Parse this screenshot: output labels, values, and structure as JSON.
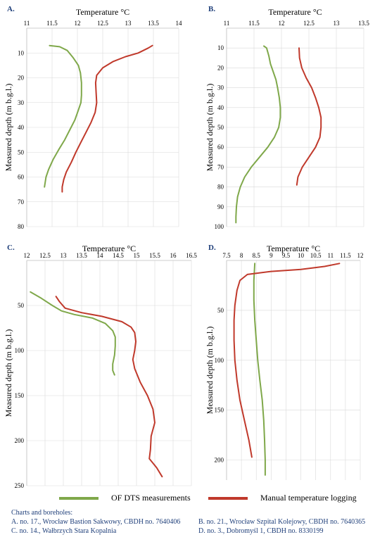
{
  "chart_data": [
    {
      "type": "line",
      "panel": "A.",
      "title": "Temperature °C",
      "xlabel": "Temperature °C",
      "ylabel": "Measured depth (m b.g.l.)",
      "xlim": [
        11,
        14
      ],
      "ylim": [
        0,
        80
      ],
      "xticks": [
        "11",
        "11.5",
        "12",
        "12.5",
        "13",
        "13.5",
        "14"
      ],
      "yticks": [
        "10",
        "20",
        "30",
        "40",
        "50",
        "60",
        "70",
        "80"
      ],
      "series": [
        {
          "name": "OF DTS measurements",
          "color": "#7fa84a",
          "points": [
            [
              11.45,
              7
            ],
            [
              11.65,
              7.5
            ],
            [
              11.8,
              9
            ],
            [
              11.92,
              12
            ],
            [
              12.02,
              15
            ],
            [
              12.06,
              18
            ],
            [
              12.08,
              22
            ],
            [
              12.08,
              27
            ],
            [
              12.07,
              30
            ],
            [
              12.02,
              33
            ],
            [
              11.95,
              37
            ],
            [
              11.85,
              41
            ],
            [
              11.75,
              45
            ],
            [
              11.63,
              49
            ],
            [
              11.52,
              53
            ],
            [
              11.43,
              57
            ],
            [
              11.38,
              60
            ],
            [
              11.35,
              64
            ]
          ]
        },
        {
          "name": "Manual temperature logging",
          "color": "#c0392b",
          "points": [
            [
              13.48,
              7
            ],
            [
              13.4,
              8
            ],
            [
              13.2,
              10
            ],
            [
              12.95,
              11.5
            ],
            [
              12.7,
              13.5
            ],
            [
              12.5,
              16
            ],
            [
              12.38,
              19
            ],
            [
              12.36,
              22
            ],
            [
              12.37,
              26
            ],
            [
              12.38,
              30
            ],
            [
              12.35,
              34
            ],
            [
              12.27,
              38
            ],
            [
              12.17,
              42
            ],
            [
              12.07,
              46
            ],
            [
              11.97,
              50
            ],
            [
              11.88,
              54
            ],
            [
              11.78,
              58
            ],
            [
              11.73,
              61
            ],
            [
              11.7,
              64
            ],
            [
              11.7,
              66
            ]
          ]
        }
      ]
    },
    {
      "type": "line",
      "panel": "B.",
      "title": "Temperature °C",
      "xlabel": "Temperature °C",
      "ylabel": "Measured depth (m b.g.l.)",
      "xlim": [
        11,
        13.5
      ],
      "ylim": [
        0,
        100
      ],
      "xticks": [
        "11",
        "11.5",
        "12",
        "12.5",
        "13",
        "13.5"
      ],
      "yticks": [
        "10",
        "20",
        "30",
        "40",
        "50",
        "60",
        "70",
        "80",
        "90",
        "100"
      ],
      "series": [
        {
          "name": "OF DTS measurements",
          "color": "#7fa84a",
          "points": [
            [
              11.68,
              9
            ],
            [
              11.73,
              10
            ],
            [
              11.77,
              14
            ],
            [
              11.8,
              18
            ],
            [
              11.85,
              22
            ],
            [
              11.9,
              26
            ],
            [
              11.93,
              30
            ],
            [
              11.96,
              35
            ],
            [
              11.98,
              40
            ],
            [
              11.98,
              45
            ],
            [
              11.95,
              50
            ],
            [
              11.87,
              55
            ],
            [
              11.75,
              60
            ],
            [
              11.6,
              65
            ],
            [
              11.45,
              70
            ],
            [
              11.33,
              75
            ],
            [
              11.25,
              80
            ],
            [
              11.2,
              85
            ],
            [
              11.18,
              90
            ],
            [
              11.17,
              95
            ],
            [
              11.17,
              98
            ]
          ]
        },
        {
          "name": "Manual temperature logging",
          "color": "#c0392b",
          "points": [
            [
              12.32,
              10
            ],
            [
              12.33,
              15
            ],
            [
              12.37,
              20
            ],
            [
              12.45,
              25
            ],
            [
              12.55,
              30
            ],
            [
              12.62,
              35
            ],
            [
              12.68,
              40
            ],
            [
              12.72,
              45
            ],
            [
              12.72,
              50
            ],
            [
              12.7,
              55
            ],
            [
              12.62,
              60
            ],
            [
              12.5,
              65
            ],
            [
              12.38,
              70
            ],
            [
              12.3,
              75
            ],
            [
              12.28,
              79
            ]
          ]
        }
      ]
    },
    {
      "type": "line",
      "panel": "C.",
      "title": "Temperature °C",
      "xlabel": "Temperature °C",
      "ylabel": "Measured depth (m b.g.l.)",
      "xlim": [
        12,
        16.5
      ],
      "ylim": [
        0,
        250
      ],
      "xticks": [
        "12",
        "12.5",
        "13",
        "13.5",
        "14",
        "14.5",
        "15",
        "15.5",
        "16",
        "16.5"
      ],
      "yticks": [
        "50",
        "100",
        "150",
        "200",
        "250"
      ],
      "series": [
        {
          "name": "OF DTS measurements",
          "color": "#7fa84a",
          "points": [
            [
              12.1,
              35
            ],
            [
              12.4,
              42
            ],
            [
              12.7,
              50
            ],
            [
              12.95,
              56
            ],
            [
              13.3,
              60
            ],
            [
              13.8,
              64
            ],
            [
              14.15,
              70
            ],
            [
              14.35,
              78
            ],
            [
              14.42,
              85
            ],
            [
              14.42,
              95
            ],
            [
              14.4,
              105
            ],
            [
              14.35,
              115
            ],
            [
              14.35,
              122
            ],
            [
              14.4,
              127
            ]
          ]
        },
        {
          "name": "Manual temperature logging",
          "color": "#c0392b",
          "points": [
            [
              12.8,
              40
            ],
            [
              12.9,
              46
            ],
            [
              13.05,
              53
            ],
            [
              13.5,
              58
            ],
            [
              14.05,
              62
            ],
            [
              14.6,
              68
            ],
            [
              14.85,
              74
            ],
            [
              14.95,
              80
            ],
            [
              14.98,
              90
            ],
            [
              14.95,
              100
            ],
            [
              14.9,
              110
            ],
            [
              14.95,
              120
            ],
            [
              15.1,
              135
            ],
            [
              15.3,
              150
            ],
            [
              15.45,
              165
            ],
            [
              15.5,
              180
            ],
            [
              15.4,
              195
            ],
            [
              15.38,
              210
            ],
            [
              15.35,
              220
            ],
            [
              15.55,
              230
            ],
            [
              15.7,
              240
            ]
          ]
        }
      ]
    },
    {
      "type": "line",
      "panel": "D.",
      "title": "Temperature °C",
      "xlabel": "Temperature °C",
      "ylabel": "Measured depth (m b.g.l.)",
      "xlim": [
        7.5,
        12
      ],
      "ylim": [
        0,
        220
      ],
      "xticks": [
        "7.5",
        "8",
        "8.5",
        "9",
        "9.5",
        "10",
        "10.5",
        "11",
        "11.5",
        "12"
      ],
      "yticks": [
        "50",
        "100",
        "150",
        "200"
      ],
      "series": [
        {
          "name": "OF DTS measurements",
          "color": "#7fa84a",
          "points": [
            [
              8.45,
              3
            ],
            [
              8.42,
              20
            ],
            [
              8.42,
              40
            ],
            [
              8.45,
              60
            ],
            [
              8.5,
              80
            ],
            [
              8.55,
              100
            ],
            [
              8.62,
              120
            ],
            [
              8.7,
              140
            ],
            [
              8.75,
              160
            ],
            [
              8.78,
              180
            ],
            [
              8.8,
              200
            ],
            [
              8.8,
              215
            ]
          ]
        },
        {
          "name": "Manual temperature logging",
          "color": "#c0392b",
          "points": [
            [
              11.3,
              3
            ],
            [
              10.8,
              6
            ],
            [
              10.0,
              9
            ],
            [
              9.0,
              11
            ],
            [
              8.2,
              14
            ],
            [
              7.95,
              20
            ],
            [
              7.85,
              30
            ],
            [
              7.78,
              45
            ],
            [
              7.75,
              60
            ],
            [
              7.75,
              80
            ],
            [
              7.78,
              100
            ],
            [
              7.85,
              120
            ],
            [
              7.95,
              140
            ],
            [
              8.1,
              160
            ],
            [
              8.25,
              180
            ],
            [
              8.35,
              197
            ]
          ]
        }
      ]
    }
  ],
  "legend": {
    "dts_label": "OF DTS measurements",
    "manual_label": "Manual temperature logging",
    "dts_color": "#7fa84a",
    "manual_color": "#c0392b"
  },
  "footer": {
    "heading": "Charts and boreholes:",
    "a": "A. no. 17., Wrocław Bastion Sakwowy, CBDH no. 7640406",
    "b": "B. no. 21., Wrocław Szpital Kolejowy, CBDH no. 7640365",
    "c": "C. no. 14., Wałbrzych Stara Kopalnia",
    "d": "D. no. 3., Dobromyśl 1, CBDH no. 8330199"
  }
}
